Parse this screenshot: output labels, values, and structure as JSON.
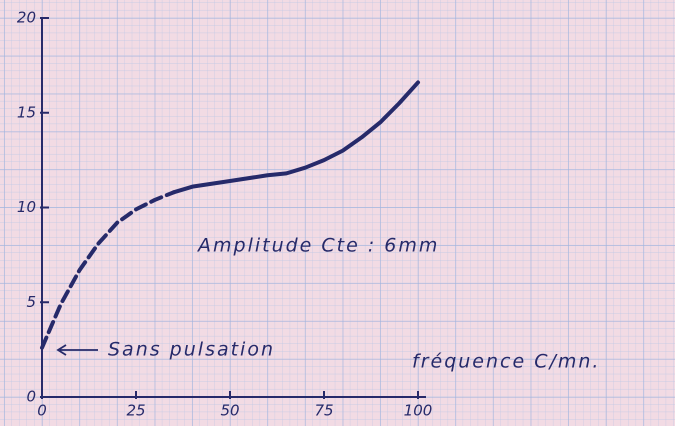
{
  "chart_data": {
    "type": "line",
    "x_label": "fréquence C/mn.",
    "annotations": [
      "Amplitude Cte : 6mm",
      "Sans pulsation"
    ],
    "x": [
      0,
      5,
      10,
      15,
      20,
      25,
      30,
      35,
      40,
      50,
      60,
      65,
      70,
      75,
      80,
      85,
      90,
      95,
      100
    ],
    "values": [
      2.6,
      4.9,
      6.7,
      8.1,
      9.2,
      9.9,
      10.4,
      10.8,
      11.1,
      11.4,
      11.7,
      11.8,
      12.1,
      12.5,
      13.0,
      13.7,
      14.5,
      15.5,
      16.6
    ],
    "dashed_below_x": 35,
    "color": "#262a6a",
    "xlim": [
      0,
      100
    ],
    "xticks": [
      0,
      25,
      50,
      75,
      100
    ],
    "ylim": [
      0,
      20
    ],
    "yticks": [
      0,
      5,
      10,
      15,
      20
    ]
  }
}
